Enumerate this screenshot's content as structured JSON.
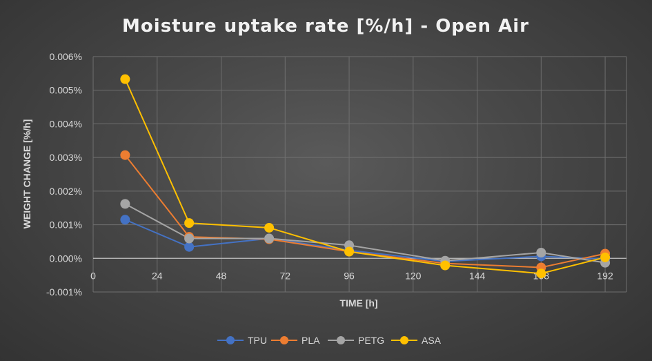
{
  "chart_data": {
    "type": "line",
    "title": "Moisture uptake rate [%/h] - Open Air",
    "xlabel": "TIME [h]",
    "ylabel": "WEIGHT CHANGE [%/h]",
    "xlim": [
      0,
      200
    ],
    "ylim": [
      -0.001,
      0.006
    ],
    "x_ticks": [
      0,
      24,
      48,
      72,
      96,
      120,
      144,
      168,
      192
    ],
    "x_tick_labels": [
      "0",
      "24",
      "48",
      "72",
      "96",
      "120",
      "144",
      "168",
      "192"
    ],
    "y_ticks": [
      -0.001,
      0,
      0.001,
      0.002,
      0.003,
      0.004,
      0.005,
      0.006
    ],
    "y_tick_labels": [
      "-0.001%",
      "0.000%",
      "0.001%",
      "0.002%",
      "0.003%",
      "0.004%",
      "0.005%",
      "0.006%"
    ],
    "grid": true,
    "legend_position": "bottom",
    "x": [
      12,
      36,
      66,
      96,
      132,
      168,
      192
    ],
    "series": [
      {
        "name": "TPU",
        "color": "#4472C4",
        "values": [
          0.00115,
          0.00034,
          0.00059,
          0.00024,
          -9e-05,
          6e-05,
          -2e-05
        ]
      },
      {
        "name": "PLA",
        "color": "#ED7D31",
        "values": [
          0.00307,
          0.00064,
          0.00057,
          0.0002,
          -0.00015,
          -0.00027,
          0.00014
        ]
      },
      {
        "name": "PETG",
        "color": "#A5A5A5",
        "values": [
          0.00162,
          0.00059,
          0.00059,
          0.00039,
          -7e-05,
          0.00017,
          -0.00013
        ]
      },
      {
        "name": "ASA",
        "color": "#FFC000",
        "values": [
          0.00533,
          0.00105,
          0.00091,
          0.0002,
          -0.00021,
          -0.00045,
          3e-05
        ]
      }
    ]
  }
}
